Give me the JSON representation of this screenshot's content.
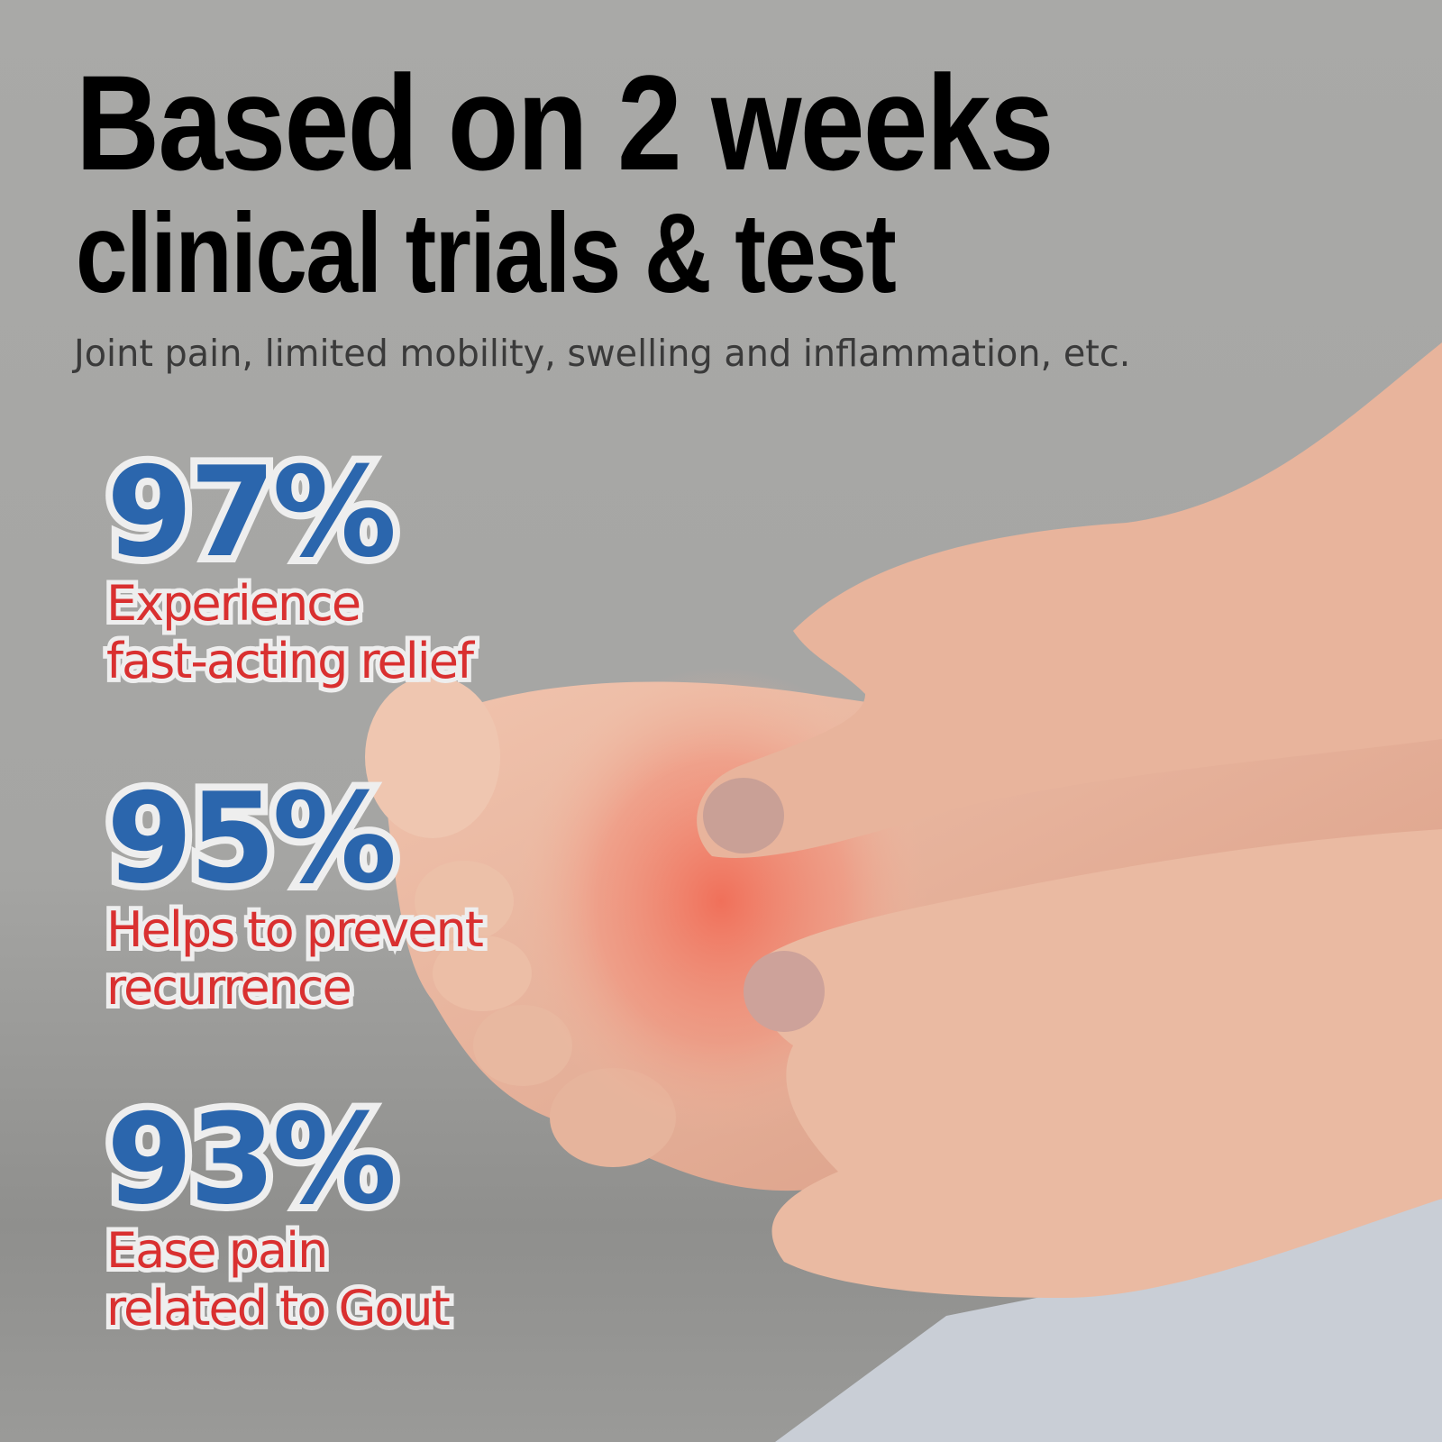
{
  "headline": {
    "line1": "Based on 2 weeks",
    "line2": "clinical trials & test"
  },
  "subtitle": "Joint pain, limited mobility, swelling and inflammation, etc.",
  "stats": [
    {
      "percent": "97%",
      "line1": "Experience",
      "line2": "fast-acting relief"
    },
    {
      "percent": "95%",
      "line1": "Helps to prevent",
      "line2": "recurrence"
    },
    {
      "percent": "93%",
      "line1": "Ease pain",
      "line2": "related to Gout"
    }
  ],
  "colors": {
    "percent": "#2b66ad",
    "description": "#d93030",
    "outline": "#eeeeee",
    "background": "#a7a7a5"
  },
  "image": "hands-massaging-inflamed-foot"
}
